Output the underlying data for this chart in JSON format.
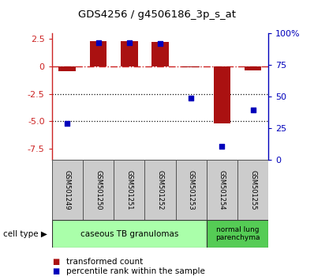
{
  "title": "GDS4256 / g4506186_3p_s_at",
  "samples": [
    "GSM501249",
    "GSM501250",
    "GSM501251",
    "GSM501252",
    "GSM501253",
    "GSM501254",
    "GSM501255"
  ],
  "transformed_count": [
    -0.42,
    2.28,
    2.28,
    2.22,
    -0.05,
    -5.18,
    -0.38
  ],
  "percentile_rank": [
    23,
    97,
    97,
    96,
    46,
    2,
    35
  ],
  "left_ylim": [
    -8.5,
    3.0
  ],
  "left_yticks": [
    2.5,
    0.0,
    -2.5,
    -5.0,
    -7.5
  ],
  "right_ytick_labels": [
    "100%",
    "75",
    "50",
    "25",
    "0"
  ],
  "bar_color": "#aa1111",
  "dot_color": "#0000bb",
  "zero_line_color": "#cc2222",
  "dotted_line_color": "#111111",
  "group1_color": "#aaffaa",
  "group2_color": "#55cc55",
  "group1_label": "caseous TB granulomas",
  "group2_label": "normal lung\nparenchyma",
  "group1_idx": [
    0,
    1,
    2,
    3,
    4
  ],
  "group2_idx": [
    5,
    6
  ],
  "legend_bar_label": "transformed count",
  "legend_dot_label": "percentile rank within the sample",
  "cell_type_label": "cell type",
  "bar_width": 0.55,
  "dot_size": 25,
  "figsize": [
    3.98,
    3.54
  ],
  "dpi": 100
}
